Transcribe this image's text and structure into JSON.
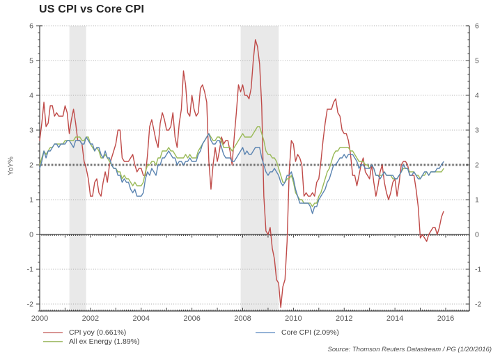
{
  "title": "US CPI vs Core CPI",
  "source_note": "Source: Thomson Reuters Datastream / PG (1/20/2016)",
  "legend": [
    {
      "label": "CPI yoy (0.661%)",
      "sample_color": "#d99694",
      "sample_thickness": 2.5
    },
    {
      "label": "All ex Energy (1.89%)",
      "sample_color": "#aec57e",
      "sample_thickness": 1.5
    },
    {
      "label": "Core CPI (2.09%)",
      "sample_color": "#95b3d7",
      "sample_thickness": 2.5
    }
  ],
  "chart_data": {
    "type": "line",
    "title": "US CPI vs Core CPI",
    "xlabel": "",
    "ylabel": "YoY%",
    "x_start_year": 2000,
    "x_interval": "monthly",
    "xlim": [
      2000,
      2016.93
    ],
    "ylim": [
      -2,
      6
    ],
    "x_ticks": [
      2000,
      2002,
      2004,
      2006,
      2008,
      2010,
      2012,
      2014,
      2016
    ],
    "y_ticks": [
      6,
      5,
      4,
      3,
      2,
      1,
      0,
      -1,
      -2
    ],
    "grid": "dotted-horizontal-at-integers",
    "reference_line_y": 2,
    "zero_axis_with_ticks": true,
    "legend_position": "bottom-left",
    "recession_band_color": "#e9e9e9",
    "recession_bands": [
      [
        2001.17,
        2001.83
      ],
      [
        2007.92,
        2009.42
      ]
    ],
    "series": [
      {
        "name": "CPI yoy (0.661%)",
        "color": "#bf4a48",
        "values": [
          2.7,
          3.2,
          3.8,
          3.1,
          3.2,
          3.7,
          3.7,
          3.4,
          3.5,
          3.4,
          3.4,
          3.4,
          3.7,
          3.5,
          2.9,
          3.3,
          3.6,
          3.2,
          2.7,
          2.7,
          2.6,
          2.1,
          1.9,
          1.6,
          1.1,
          1.1,
          1.5,
          1.6,
          1.2,
          1.1,
          1.5,
          1.8,
          1.5,
          2.0,
          2.2,
          2.4,
          2.6,
          3.0,
          3.0,
          2.2,
          2.1,
          2.1,
          2.1,
          2.2,
          2.3,
          2.0,
          1.8,
          1.9,
          1.9,
          1.7,
          1.7,
          2.3,
          3.1,
          3.3,
          3.0,
          2.7,
          2.5,
          3.2,
          3.5,
          3.3,
          3.0,
          3.0,
          3.1,
          3.5,
          2.8,
          2.5,
          3.2,
          3.6,
          4.7,
          4.3,
          3.5,
          3.4,
          4.0,
          3.6,
          3.4,
          3.5,
          4.2,
          4.3,
          4.1,
          3.8,
          2.1,
          1.3,
          2.0,
          2.5,
          2.1,
          2.4,
          2.8,
          2.6,
          2.7,
          2.7,
          2.4,
          2.0,
          2.8,
          3.5,
          4.3,
          4.1,
          4.3,
          4.0,
          4.0,
          3.9,
          4.2,
          5.0,
          5.6,
          5.4,
          4.9,
          3.7,
          1.1,
          0.1,
          0.0,
          0.2,
          -0.4,
          -0.7,
          -1.3,
          -1.4,
          -2.1,
          -1.5,
          -1.3,
          -0.2,
          1.8,
          2.7,
          2.6,
          2.1,
          2.3,
          2.2,
          2.0,
          1.1,
          1.2,
          1.1,
          1.1,
          1.2,
          1.1,
          1.5,
          1.6,
          2.1,
          2.7,
          3.2,
          3.6,
          3.6,
          3.6,
          3.8,
          3.9,
          3.5,
          3.4,
          3.0,
          2.9,
          2.9,
          2.7,
          2.3,
          1.7,
          1.7,
          1.4,
          1.7,
          2.0,
          2.2,
          1.8,
          1.7,
          1.6,
          2.0,
          1.5,
          1.1,
          1.4,
          1.8,
          2.0,
          1.5,
          1.2,
          1.0,
          1.2,
          1.5,
          1.6,
          1.1,
          1.5,
          2.0,
          2.1,
          2.1,
          2.0,
          1.7,
          1.7,
          1.7,
          1.3,
          0.8,
          -0.1,
          0.0,
          -0.1,
          -0.2,
          0.0,
          0.1,
          0.2,
          0.2,
          0.0,
          0.2,
          0.5,
          0.661
        ]
      },
      {
        "name": "All ex Energy (1.89%)",
        "color": "#9aba58",
        "values": [
          2.0,
          2.2,
          2.4,
          2.3,
          2.4,
          2.5,
          2.5,
          2.6,
          2.6,
          2.6,
          2.6,
          2.6,
          2.7,
          2.7,
          2.7,
          2.7,
          2.7,
          2.8,
          2.8,
          2.8,
          2.7,
          2.7,
          2.8,
          2.8,
          2.6,
          2.5,
          2.4,
          2.5,
          2.4,
          2.2,
          2.2,
          2.3,
          2.2,
          2.1,
          2.0,
          1.9,
          1.9,
          1.8,
          1.8,
          1.6,
          1.7,
          1.6,
          1.6,
          1.5,
          1.4,
          1.5,
          1.4,
          1.4,
          1.4,
          1.5,
          1.8,
          2.0,
          2.0,
          2.1,
          2.1,
          2.0,
          2.2,
          2.2,
          2.4,
          2.4,
          2.4,
          2.5,
          2.4,
          2.4,
          2.3,
          2.2,
          2.2,
          2.2,
          2.2,
          2.3,
          2.2,
          2.3,
          2.2,
          2.2,
          2.2,
          2.4,
          2.5,
          2.6,
          2.7,
          2.8,
          2.9,
          2.8,
          2.7,
          2.7,
          2.8,
          2.8,
          2.7,
          2.5,
          2.5,
          2.5,
          2.5,
          2.4,
          2.5,
          2.6,
          2.7,
          2.8,
          2.9,
          2.8,
          2.8,
          2.8,
          2.8,
          2.9,
          3.0,
          3.1,
          3.1,
          2.9,
          2.7,
          2.4,
          2.3,
          2.3,
          2.2,
          2.2,
          2.1,
          1.9,
          1.7,
          1.5,
          1.5,
          1.6,
          1.6,
          1.7,
          1.5,
          1.2,
          1.1,
          1.0,
          1.0,
          0.9,
          0.9,
          0.9,
          0.9,
          0.8,
          0.9,
          0.9,
          1.1,
          1.2,
          1.4,
          1.6,
          1.8,
          1.9,
          2.1,
          2.3,
          2.4,
          2.4,
          2.5,
          2.5,
          2.5,
          2.5,
          2.5,
          2.4,
          2.4,
          2.3,
          2.2,
          2.1,
          2.1,
          2.1,
          2.0,
          2.0,
          1.9,
          2.0,
          1.9,
          1.7,
          1.7,
          1.7,
          1.7,
          1.8,
          1.7,
          1.7,
          1.7,
          1.6,
          1.6,
          1.6,
          1.7,
          1.8,
          1.9,
          1.9,
          1.9,
          1.8,
          1.8,
          1.8,
          1.7,
          1.7,
          1.6,
          1.7,
          1.7,
          1.8,
          1.7,
          1.8,
          1.8,
          1.8,
          1.8,
          1.8,
          1.8,
          1.89
        ]
      },
      {
        "name": "Core CPI (2.09%)",
        "color": "#5b84b1",
        "values": [
          1.9,
          2.1,
          2.4,
          2.2,
          2.4,
          2.4,
          2.5,
          2.6,
          2.6,
          2.5,
          2.6,
          2.6,
          2.6,
          2.7,
          2.7,
          2.6,
          2.5,
          2.7,
          2.7,
          2.7,
          2.6,
          2.6,
          2.8,
          2.7,
          2.6,
          2.6,
          2.4,
          2.5,
          2.5,
          2.3,
          2.2,
          2.4,
          2.2,
          2.2,
          2.0,
          1.9,
          1.9,
          1.7,
          1.7,
          1.5,
          1.6,
          1.5,
          1.5,
          1.3,
          1.2,
          1.3,
          1.1,
          1.1,
          1.1,
          1.2,
          1.6,
          1.8,
          1.7,
          1.9,
          1.8,
          1.7,
          2.0,
          2.0,
          2.2,
          2.2,
          2.3,
          2.4,
          2.3,
          2.2,
          2.2,
          2.0,
          2.1,
          2.1,
          2.0,
          2.1,
          2.1,
          2.2,
          2.1,
          2.1,
          2.1,
          2.3,
          2.4,
          2.6,
          2.7,
          2.8,
          2.9,
          2.7,
          2.6,
          2.6,
          2.7,
          2.7,
          2.5,
          2.3,
          2.2,
          2.2,
          2.2,
          2.1,
          2.1,
          2.2,
          2.3,
          2.4,
          2.5,
          2.3,
          2.4,
          2.3,
          2.3,
          2.4,
          2.5,
          2.5,
          2.5,
          2.2,
          2.0,
          1.8,
          1.7,
          1.8,
          1.8,
          1.9,
          1.8,
          1.7,
          1.5,
          1.4,
          1.5,
          1.7,
          1.7,
          1.8,
          1.6,
          1.3,
          1.1,
          0.9,
          0.9,
          0.9,
          0.9,
          0.9,
          0.8,
          0.6,
          0.8,
          0.8,
          1.0,
          1.1,
          1.2,
          1.3,
          1.5,
          1.6,
          1.8,
          2.0,
          2.0,
          2.1,
          2.2,
          2.2,
          2.3,
          2.2,
          2.3,
          2.3,
          2.3,
          2.2,
          2.1,
          1.9,
          2.0,
          2.0,
          1.9,
          1.9,
          1.9,
          2.0,
          1.9,
          1.7,
          1.7,
          1.6,
          1.7,
          1.8,
          1.7,
          1.7,
          1.7,
          1.7,
          1.6,
          1.6,
          1.7,
          1.8,
          2.0,
          1.9,
          1.9,
          1.7,
          1.7,
          1.8,
          1.7,
          1.6,
          1.6,
          1.7,
          1.8,
          1.8,
          1.7,
          1.8,
          1.8,
          1.8,
          1.9,
          1.9,
          2.0,
          2.09
        ]
      }
    ]
  }
}
